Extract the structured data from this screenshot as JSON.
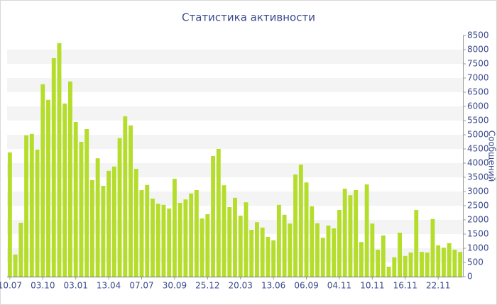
{
  "chart_data": {
    "type": "bar",
    "title": "Статистика активности",
    "y_label": "Сообщений",
    "categories": [
      "10.07",
      null,
      null,
      null,
      null,
      null,
      "03.10",
      null,
      null,
      null,
      null,
      null,
      "03.01",
      null,
      null,
      null,
      null,
      null,
      "13.04",
      null,
      null,
      null,
      null,
      null,
      "07.07",
      null,
      null,
      null,
      null,
      null,
      "30.09",
      null,
      null,
      null,
      null,
      null,
      "25.12",
      null,
      null,
      null,
      null,
      null,
      "20.03",
      null,
      null,
      null,
      null,
      null,
      "13.06",
      null,
      null,
      null,
      null,
      null,
      "06.09",
      null,
      null,
      null,
      null,
      null,
      "04.11",
      null,
      null,
      null,
      null,
      null,
      "10.11",
      null,
      null,
      null,
      null,
      null,
      "16.11",
      null,
      null,
      null,
      null,
      null,
      "22.11",
      null,
      null,
      null,
      null
    ],
    "values": [
      4380,
      780,
      1900,
      4980,
      5030,
      4480,
      6780,
      6230,
      7700,
      8230,
      6100,
      6880,
      5450,
      4750,
      5200,
      3400,
      4170,
      3200,
      3730,
      3880,
      4880,
      5650,
      5330,
      3800,
      3050,
      3230,
      2750,
      2570,
      2530,
      2400,
      3450,
      2600,
      2720,
      2930,
      3050,
      2050,
      2200,
      4250,
      4500,
      3220,
      2450,
      2780,
      2150,
      2620,
      1650,
      1920,
      1730,
      1400,
      1280,
      2530,
      2180,
      1870,
      3600,
      3950,
      3320,
      2480,
      1880,
      1370,
      1800,
      1700,
      2350,
      3100,
      2870,
      3050,
      1220,
      3250,
      1870,
      950,
      1450,
      350,
      680,
      1550,
      730,
      850,
      2350,
      870,
      850,
      2030,
      1100,
      1020,
      1180,
      950,
      870
    ],
    "color": "#b5dd2c",
    "ylim": [
      0,
      8500
    ],
    "yticks": [
      0,
      500,
      1000,
      1500,
      2000,
      2500,
      3000,
      3500,
      4000,
      4500,
      5000,
      5500,
      6000,
      6500,
      7000,
      7500,
      8000,
      8500
    ],
    "grid": true
  }
}
